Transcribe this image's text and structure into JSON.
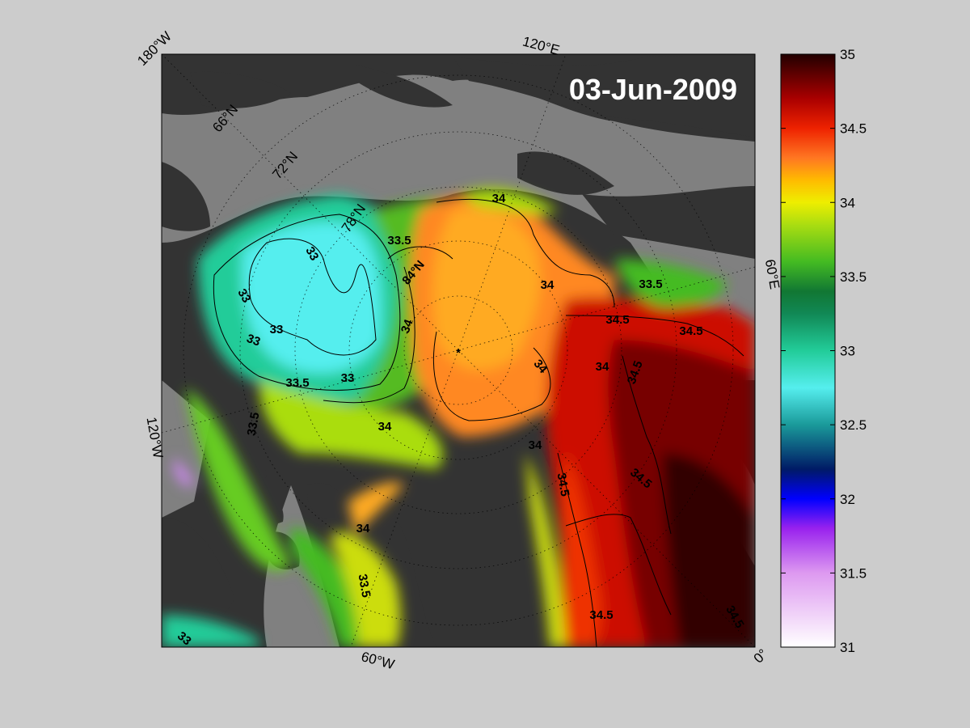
{
  "map": {
    "date_label": "03-Jun-2009",
    "background_color": "#cccccc",
    "land_color": "#333333",
    "ocean_nodata_color": "#808080",
    "pole_marker": "*"
  },
  "graticule": {
    "lon_labels": [
      "180°W",
      "120°E",
      "60°E",
      "0°",
      "60°W",
      "120°W"
    ],
    "lat_labels": [
      "66°N",
      "72°N",
      "78°N",
      "84°N"
    ]
  },
  "contour_labels": [
    "34",
    "33.5",
    "34",
    "34",
    "34.5",
    "34.5",
    "33.5",
    "33",
    "33",
    "33",
    "33",
    "33",
    "33.5",
    "33.5",
    "34",
    "34",
    "34",
    "34.5",
    "34",
    "34.5",
    "34.5",
    "34",
    "33.5",
    "34.5",
    "33",
    "84°N",
    "34.5"
  ],
  "colorbar": {
    "min": 31,
    "max": 35,
    "ticks": [
      "35",
      "34.5",
      "34",
      "33.5",
      "33",
      "32.5",
      "32",
      "31.5",
      "31"
    ],
    "stops": [
      {
        "value": 31.0,
        "color": "#ffffff"
      },
      {
        "value": 31.5,
        "color": "#dd99f0"
      },
      {
        "value": 31.8,
        "color": "#9922ee"
      },
      {
        "value": 32.0,
        "color": "#0000ff"
      },
      {
        "value": 32.2,
        "color": "#001a66"
      },
      {
        "value": 32.5,
        "color": "#1a9a9a"
      },
      {
        "value": 32.75,
        "color": "#55eeee"
      },
      {
        "value": 33.0,
        "color": "#22cc99"
      },
      {
        "value": 33.25,
        "color": "#118855"
      },
      {
        "value": 33.4,
        "color": "#117733"
      },
      {
        "value": 33.6,
        "color": "#44bb22"
      },
      {
        "value": 33.85,
        "color": "#aadd11"
      },
      {
        "value": 34.0,
        "color": "#eeee00"
      },
      {
        "value": 34.15,
        "color": "#ffbb00"
      },
      {
        "value": 34.3,
        "color": "#ff7722"
      },
      {
        "value": 34.5,
        "color": "#ee2200"
      },
      {
        "value": 34.7,
        "color": "#aa0000"
      },
      {
        "value": 34.85,
        "color": "#660000"
      },
      {
        "value": 35.0,
        "color": "#220000"
      }
    ]
  }
}
